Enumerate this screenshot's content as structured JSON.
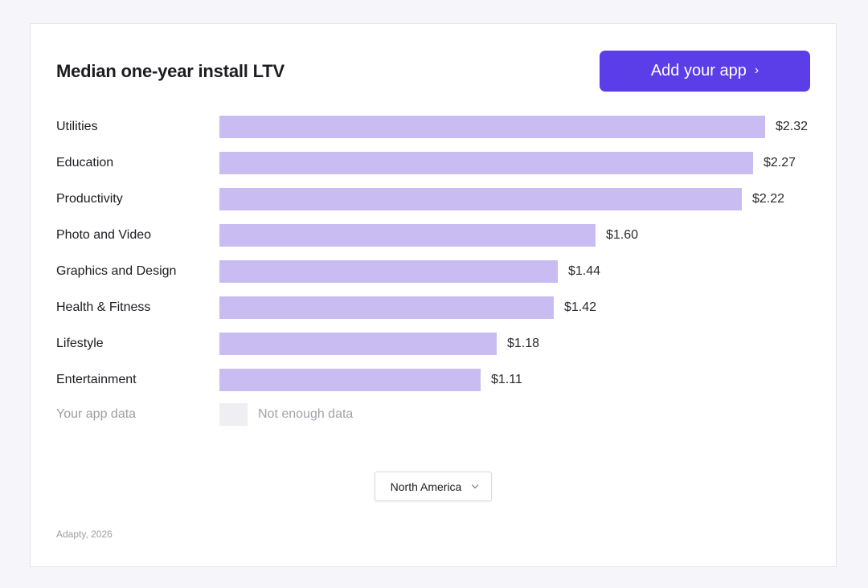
{
  "header": {
    "title": "Median one-year install LTV",
    "add_button_label": "Add your app",
    "add_button_icon": "chevron-right-icon"
  },
  "colors": {
    "accent": "#5b3ee8",
    "bar": "#c9bcf2",
    "nodata_box": "#efeff3"
  },
  "chart_data": {
    "type": "bar",
    "orientation": "horizontal",
    "title": "Median one-year install LTV",
    "categories": [
      "Utilities",
      "Education",
      "Productivity",
      "Photo and Video",
      "Graphics and Design",
      "Health & Fitness",
      "Lifestyle",
      "Entertainment"
    ],
    "values": [
      2.32,
      2.27,
      2.22,
      1.6,
      1.44,
      1.42,
      1.18,
      1.11
    ],
    "value_labels": [
      "$2.32",
      "$2.27",
      "$2.22",
      "$1.60",
      "$1.44",
      "$1.42",
      "$1.18",
      "$1.11"
    ],
    "xlim": [
      0,
      2.32
    ],
    "xlabel": "",
    "ylabel": "",
    "grid": false
  },
  "your_app": {
    "label": "Your app data",
    "status": "Not enough data"
  },
  "region_select": {
    "selected": "North America"
  },
  "source": "Adapty, 2026"
}
